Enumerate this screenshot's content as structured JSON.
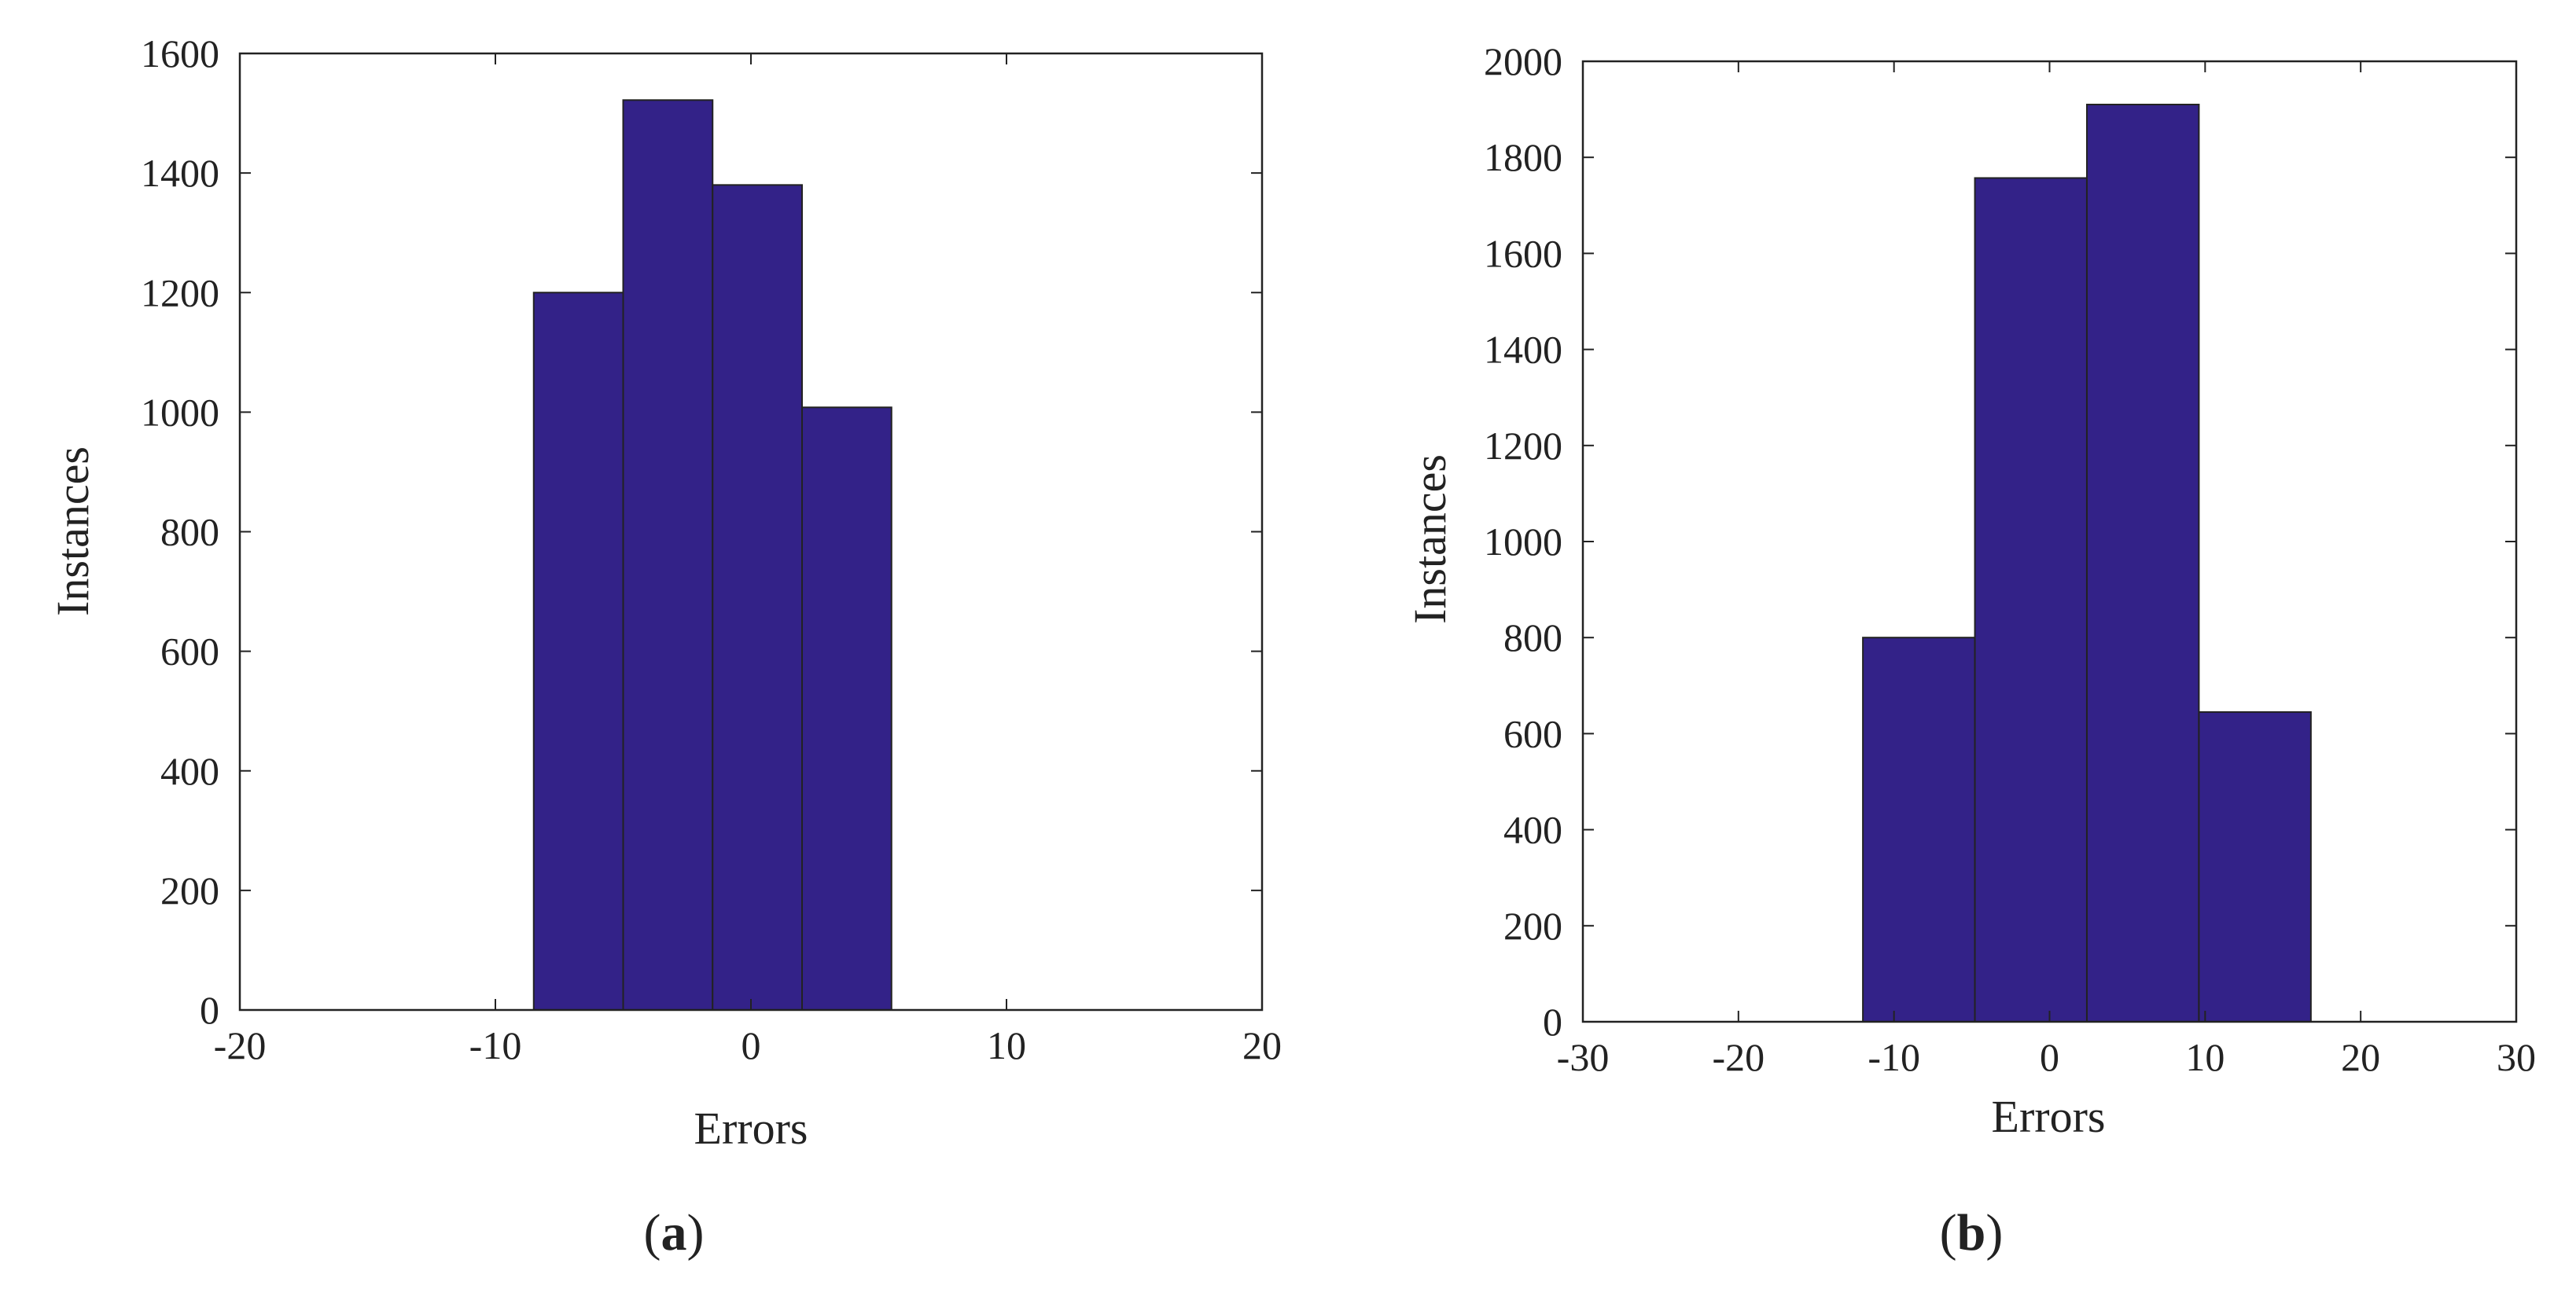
{
  "figure": {
    "panels": [
      {
        "caption_open": "(",
        "caption_letter": "a",
        "caption_close": ")"
      },
      {
        "caption_open": "(",
        "caption_letter": "b",
        "caption_close": ")"
      }
    ]
  },
  "chart_data": [
    {
      "type": "bar",
      "title": "",
      "xlabel": "Errors",
      "ylabel": "Instances",
      "xlim": [
        -20,
        20
      ],
      "ylim": [
        0,
        1600
      ],
      "xticks": [
        -20,
        -10,
        0,
        10,
        20
      ],
      "yticks": [
        0,
        200,
        400,
        600,
        800,
        1000,
        1200,
        1400,
        1600
      ],
      "grid": false,
      "bins": [
        {
          "x_start": -8.5,
          "x_end": -5.0,
          "value": 1200
        },
        {
          "x_start": -5.0,
          "x_end": -1.5,
          "value": 1522
        },
        {
          "x_start": -1.5,
          "x_end": 2.0,
          "value": 1380
        },
        {
          "x_start": 2.0,
          "x_end": 5.5,
          "value": 1008
        }
      ],
      "bar_color": "#332288",
      "edge_color": "#222222"
    },
    {
      "type": "bar",
      "title": "",
      "xlabel": "Errors",
      "ylabel": "Instances",
      "xlim": [
        -30,
        30
      ],
      "ylim": [
        0,
        2000
      ],
      "xticks": [
        -30,
        -20,
        -10,
        0,
        10,
        20,
        30
      ],
      "yticks": [
        0,
        200,
        400,
        600,
        800,
        1000,
        1200,
        1400,
        1600,
        1800,
        2000
      ],
      "grid": false,
      "bins": [
        {
          "x_start": -12.0,
          "x_end": -4.8,
          "value": 800
        },
        {
          "x_start": -4.8,
          "x_end": 2.4,
          "value": 1757
        },
        {
          "x_start": 2.4,
          "x_end": 9.6,
          "value": 1910
        },
        {
          "x_start": 9.6,
          "x_end": 16.8,
          "value": 645
        }
      ],
      "bar_color": "#332288",
      "edge_color": "#222222"
    }
  ]
}
